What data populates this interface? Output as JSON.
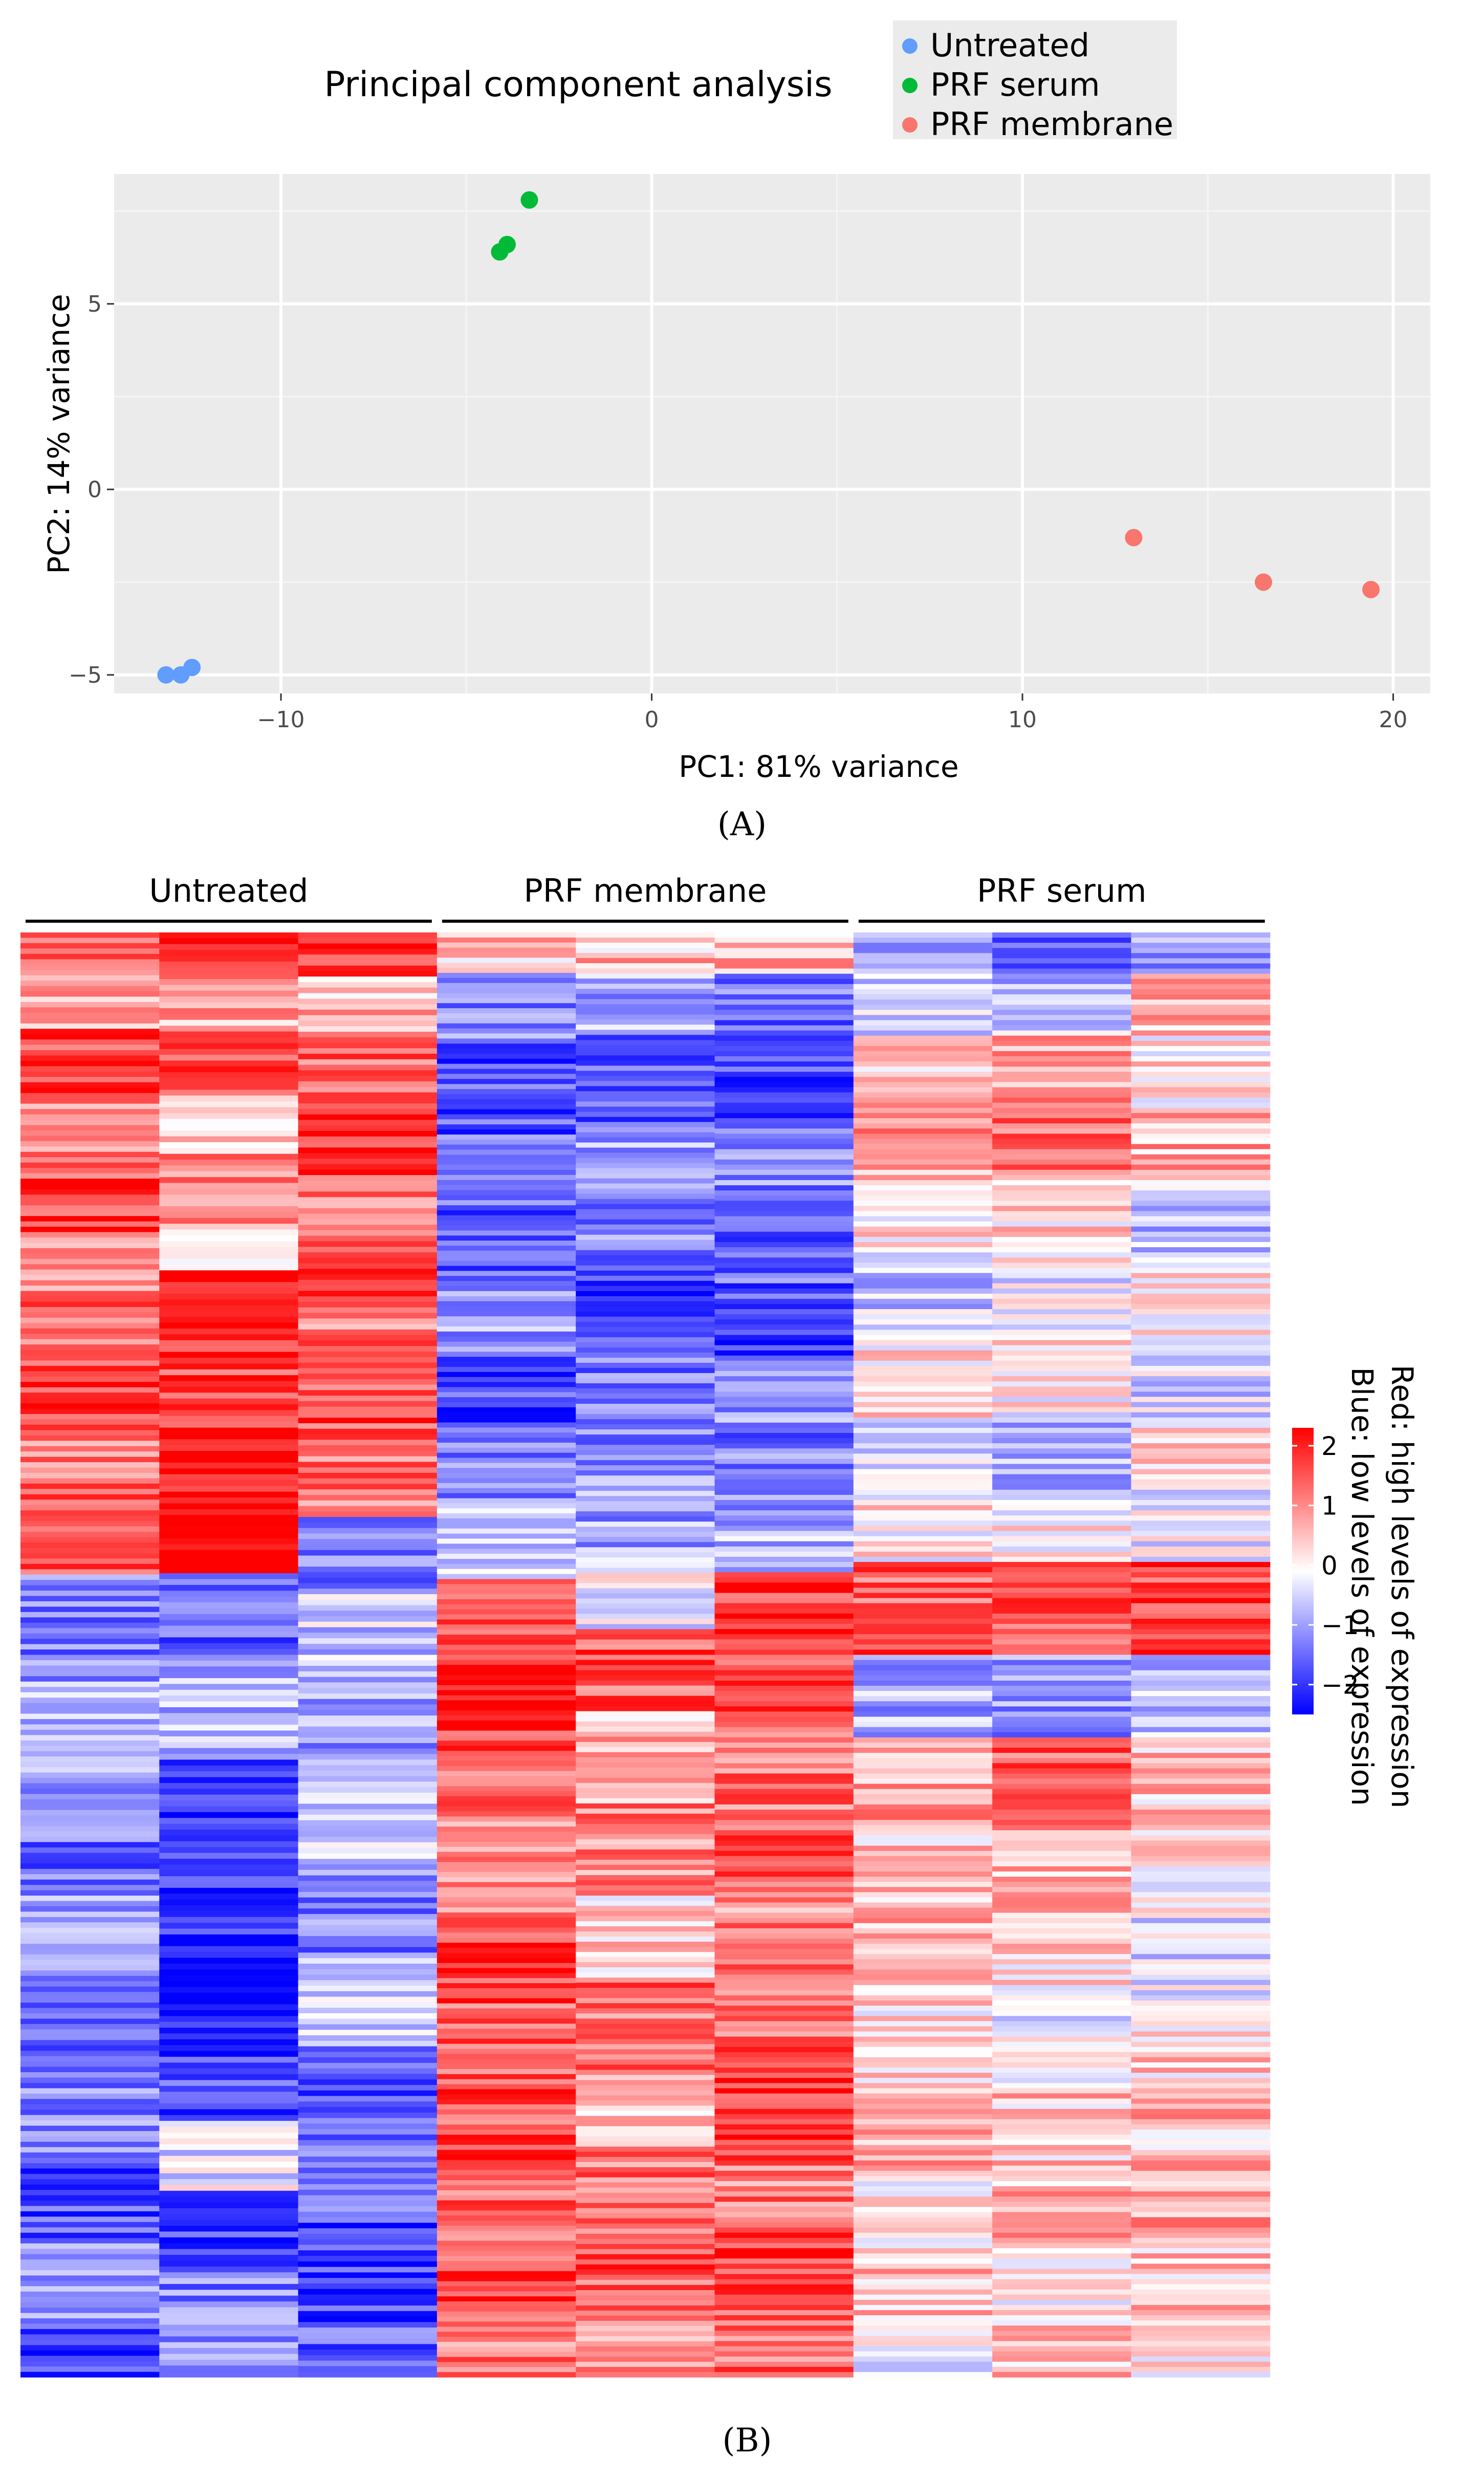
{
  "chart_data": [
    {
      "type": "scatter",
      "title": "Principal component analysis",
      "xlabel": "PC1: 81% variance",
      "ylabel": "PC2: 14% variance",
      "xlim": [
        -14.5,
        21
      ],
      "ylim": [
        -5.5,
        8.5
      ],
      "xticks": [
        -10,
        0,
        10,
        20
      ],
      "xtick_labels": [
        "−10",
        "0",
        "10",
        "20"
      ],
      "yticks": [
        -5,
        0,
        5
      ],
      "ytick_labels": [
        "−5",
        "0",
        "5"
      ],
      "grid": true,
      "legend_position": "top-right",
      "series": [
        {
          "name": "Untreated",
          "color": "#619CFF",
          "points": [
            {
              "x": -13.1,
              "y": -5.0
            },
            {
              "x": -12.7,
              "y": -5.0
            },
            {
              "x": -12.4,
              "y": -4.8
            }
          ]
        },
        {
          "name": "PRF serum",
          "color": "#00BA38",
          "points": [
            {
              "x": -3.3,
              "y": 7.8
            },
            {
              "x": -3.9,
              "y": 6.6
            },
            {
              "x": -4.1,
              "y": 6.4
            }
          ]
        },
        {
          "name": "PRF membrane",
          "color": "#F8766D",
          "points": [
            {
              "x": 13.0,
              "y": -1.3
            },
            {
              "x": 16.5,
              "y": -2.5
            },
            {
              "x": 19.4,
              "y": -2.7
            }
          ]
        }
      ],
      "panel_label": "(A)"
    },
    {
      "type": "heatmap",
      "groups": [
        "Untreated",
        "PRF membrane",
        "PRF serum"
      ],
      "samples_per_group": 3,
      "value_range": [
        -2.5,
        2.3
      ],
      "color_low": "#0000FF",
      "color_mid": "#FFFFFF",
      "color_high": "#FF0000",
      "colorbar_ticks": [
        2,
        1,
        0,
        -1,
        -2
      ],
      "colorbar_tick_labels": [
        "2",
        "1",
        "0",
        "−1",
        "−2"
      ],
      "caption_line1": "Red: high levels of expression",
      "caption_line2": "Blue: low levels of expression",
      "column_blocks": [
        [
          {
            "n": 8,
            "v": 1.4
          },
          {
            "n": 10,
            "v": 0.9
          },
          {
            "n": 14,
            "v": 1.7
          },
          {
            "n": 10,
            "v": 1.1
          },
          {
            "n": 14,
            "v": 1.6
          },
          {
            "n": 12,
            "v": 1.2
          },
          {
            "n": 16,
            "v": 1.4
          },
          {
            "n": 10,
            "v": 1.8
          },
          {
            "n": 14,
            "v": 1.3
          },
          {
            "n": 12,
            "v": 1.5
          },
          {
            "n": 20,
            "v": -1.3
          },
          {
            "n": 18,
            "v": -0.7
          },
          {
            "n": 20,
            "v": -1.4
          },
          {
            "n": 16,
            "v": -1.0
          },
          {
            "n": 20,
            "v": -1.5
          },
          {
            "n": 16,
            "v": -1.2
          },
          {
            "n": 14,
            "v": -1.7
          },
          {
            "n": 16,
            "v": -1.1
          },
          {
            "n": 10,
            "v": -1.9
          }
        ],
        [
          {
            "n": 6,
            "v": 2.0
          },
          {
            "n": 10,
            "v": 0.8
          },
          {
            "n": 12,
            "v": 1.6
          },
          {
            "n": 10,
            "v": 0.4
          },
          {
            "n": 12,
            "v": 1.1
          },
          {
            "n": 8,
            "v": 0.5
          },
          {
            "n": 10,
            "v": 2.3
          },
          {
            "n": 14,
            "v": 1.7
          },
          {
            "n": 12,
            "v": 1.9
          },
          {
            "n": 16,
            "v": 2.3
          },
          {
            "n": 14,
            "v": -1.6
          },
          {
            "n": 18,
            "v": -0.7
          },
          {
            "n": 14,
            "v": -2.2
          },
          {
            "n": 16,
            "v": -2.0
          },
          {
            "n": 14,
            "v": -2.5
          },
          {
            "n": 18,
            "v": -1.8
          },
          {
            "n": 12,
            "v": -0.3
          },
          {
            "n": 14,
            "v": -1.9
          },
          {
            "n": 18,
            "v": -1.2
          }
        ],
        [
          {
            "n": 8,
            "v": 1.8
          },
          {
            "n": 10,
            "v": 0.6
          },
          {
            "n": 14,
            "v": 1.4
          },
          {
            "n": 12,
            "v": 1.9
          },
          {
            "n": 12,
            "v": 1.2
          },
          {
            "n": 10,
            "v": 1.5
          },
          {
            "n": 16,
            "v": 1.2
          },
          {
            "n": 12,
            "v": 1.6
          },
          {
            "n": 12,
            "v": 1.3
          },
          {
            "n": 14,
            "v": -1.2
          },
          {
            "n": 14,
            "v": -0.5
          },
          {
            "n": 18,
            "v": -1.0
          },
          {
            "n": 16,
            "v": -0.4
          },
          {
            "n": 18,
            "v": -1.3
          },
          {
            "n": 16,
            "v": -0.6
          },
          {
            "n": 18,
            "v": -1.7
          },
          {
            "n": 14,
            "v": -1.4
          },
          {
            "n": 18,
            "v": -1.9
          },
          {
            "n": 10,
            "v": -1.6
          }
        ],
        [
          {
            "n": 8,
            "v": 0.5
          },
          {
            "n": 14,
            "v": -1.2
          },
          {
            "n": 18,
            "v": -1.7
          },
          {
            "n": 14,
            "v": -1.3
          },
          {
            "n": 16,
            "v": -1.6
          },
          {
            "n": 14,
            "v": -1.0
          },
          {
            "n": 16,
            "v": -1.8
          },
          {
            "n": 14,
            "v": -1.2
          },
          {
            "n": 14,
            "v": -0.7
          },
          {
            "n": 16,
            "v": 1.7
          },
          {
            "n": 14,
            "v": 2.1
          },
          {
            "n": 16,
            "v": 1.5
          },
          {
            "n": 20,
            "v": 1.2
          },
          {
            "n": 18,
            "v": 1.8
          },
          {
            "n": 16,
            "v": 1.4
          },
          {
            "n": 18,
            "v": 1.6
          },
          {
            "n": 14,
            "v": 1.3
          },
          {
            "n": 16,
            "v": 1.7
          },
          {
            "n": 10,
            "v": 1.2
          }
        ],
        [
          {
            "n": 8,
            "v": 0.6
          },
          {
            "n": 12,
            "v": -0.8
          },
          {
            "n": 18,
            "v": -1.6
          },
          {
            "n": 14,
            "v": -0.9
          },
          {
            "n": 14,
            "v": -1.2
          },
          {
            "n": 12,
            "v": -2.0
          },
          {
            "n": 14,
            "v": -1.3
          },
          {
            "n": 16,
            "v": -1.1
          },
          {
            "n": 14,
            "v": -0.9
          },
          {
            "n": 14,
            "v": -0.2
          },
          {
            "n": 16,
            "v": 1.5
          },
          {
            "n": 18,
            "v": 0.6
          },
          {
            "n": 18,
            "v": 1.1
          },
          {
            "n": 16,
            "v": 0.4
          },
          {
            "n": 18,
            "v": 1.3
          },
          {
            "n": 16,
            "v": 0.7
          },
          {
            "n": 14,
            "v": 1.2
          },
          {
            "n": 18,
            "v": 1.5
          },
          {
            "n": 12,
            "v": 0.9
          }
        ],
        [
          {
            "n": 8,
            "v": 0.7
          },
          {
            "n": 12,
            "v": -1.4
          },
          {
            "n": 18,
            "v": -1.9
          },
          {
            "n": 14,
            "v": -1.2
          },
          {
            "n": 16,
            "v": -1.5
          },
          {
            "n": 14,
            "v": -1.8
          },
          {
            "n": 14,
            "v": -1.0
          },
          {
            "n": 16,
            "v": -1.3
          },
          {
            "n": 12,
            "v": -0.8
          },
          {
            "n": 16,
            "v": 1.8
          },
          {
            "n": 14,
            "v": 1.5
          },
          {
            "n": 16,
            "v": 1.3
          },
          {
            "n": 18,
            "v": 1.6
          },
          {
            "n": 16,
            "v": 1.1
          },
          {
            "n": 18,
            "v": 1.4
          },
          {
            "n": 16,
            "v": 1.9
          },
          {
            "n": 14,
            "v": 1.2
          },
          {
            "n": 16,
            "v": 1.6
          },
          {
            "n": 12,
            "v": 1.3
          }
        ],
        [
          {
            "n": 8,
            "v": -1.1
          },
          {
            "n": 12,
            "v": -0.4
          },
          {
            "n": 14,
            "v": 0.5
          },
          {
            "n": 14,
            "v": 0.9
          },
          {
            "n": 14,
            "v": 0.2
          },
          {
            "n": 16,
            "v": -0.5
          },
          {
            "n": 16,
            "v": 0.3
          },
          {
            "n": 14,
            "v": -0.3
          },
          {
            "n": 14,
            "v": 0.2
          },
          {
            "n": 18,
            "v": 1.5
          },
          {
            "n": 16,
            "v": -0.8
          },
          {
            "n": 18,
            "v": 0.8
          },
          {
            "n": 16,
            "v": 0.4
          },
          {
            "n": 18,
            "v": 0.6
          },
          {
            "n": 16,
            "v": 0.2
          },
          {
            "n": 16,
            "v": 0.7
          },
          {
            "n": 14,
            "v": 0.3
          },
          {
            "n": 16,
            "v": 0.5
          },
          {
            "n": 10,
            "v": -0.3
          }
        ],
        [
          {
            "n": 8,
            "v": -1.8
          },
          {
            "n": 12,
            "v": -0.6
          },
          {
            "n": 14,
            "v": 0.9
          },
          {
            "n": 14,
            "v": 1.3
          },
          {
            "n": 16,
            "v": 0.4
          },
          {
            "n": 14,
            "v": -0.2
          },
          {
            "n": 16,
            "v": 0.1
          },
          {
            "n": 14,
            "v": -0.8
          },
          {
            "n": 14,
            "v": 0.0
          },
          {
            "n": 18,
            "v": 1.4
          },
          {
            "n": 16,
            "v": -1.0
          },
          {
            "n": 18,
            "v": 1.5
          },
          {
            "n": 16,
            "v": 0.6
          },
          {
            "n": 18,
            "v": 0.3
          },
          {
            "n": 16,
            "v": -0.3
          },
          {
            "n": 16,
            "v": 0.5
          },
          {
            "n": 14,
            "v": 0.7
          },
          {
            "n": 16,
            "v": 0.2
          },
          {
            "n": 10,
            "v": 0.6
          }
        ],
        [
          {
            "n": 8,
            "v": -1.0
          },
          {
            "n": 12,
            "v": 0.6
          },
          {
            "n": 14,
            "v": 0.3
          },
          {
            "n": 14,
            "v": 0.7
          },
          {
            "n": 16,
            "v": -0.6
          },
          {
            "n": 14,
            "v": 0.3
          },
          {
            "n": 16,
            "v": -0.4
          },
          {
            "n": 14,
            "v": 0.2
          },
          {
            "n": 14,
            "v": -0.2
          },
          {
            "n": 18,
            "v": 1.7
          },
          {
            "n": 16,
            "v": -0.6
          },
          {
            "n": 18,
            "v": 0.5
          },
          {
            "n": 16,
            "v": 0.2
          },
          {
            "n": 18,
            "v": -0.3
          },
          {
            "n": 16,
            "v": 0.4
          },
          {
            "n": 16,
            "v": 0.6
          },
          {
            "n": 14,
            "v": 0.9
          },
          {
            "n": 16,
            "v": 0.5
          },
          {
            "n": 10,
            "v": 0.2
          }
        ]
      ],
      "panel_label": "(B)"
    }
  ]
}
